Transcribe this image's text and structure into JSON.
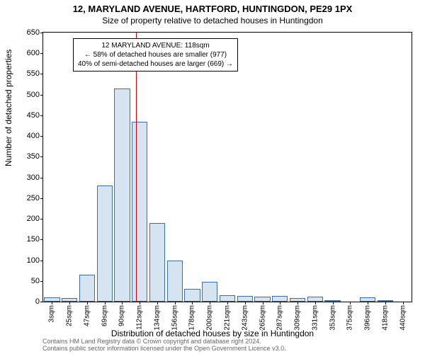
{
  "title_main": "12, MARYLAND AVENUE, HARTFORD, HUNTINGDON, PE29 1PX",
  "title_sub": "Size of property relative to detached houses in Huntingdon",
  "y_axis_label": "Number of detached properties",
  "x_axis_label": "Distribution of detached houses by size in Huntingdon",
  "footer_line1": "Contains HM Land Registry data © Crown copyright and database right 2024.",
  "footer_line2": "Contains public sector information licensed under the Open Government Licence v3.0.",
  "chart": {
    "type": "bar",
    "ylim": [
      0,
      650
    ],
    "yticks": [
      0,
      50,
      100,
      150,
      200,
      250,
      300,
      350,
      400,
      450,
      500,
      550,
      600,
      650
    ],
    "xticks": [
      "3sqm",
      "25sqm",
      "47sqm",
      "69sqm",
      "90sqm",
      "112sqm",
      "134sqm",
      "156sqm",
      "178sqm",
      "200sqm",
      "221sqm",
      "243sqm",
      "265sqm",
      "287sqm",
      "309sqm",
      "331sqm",
      "353sqm",
      "375sqm",
      "396sqm",
      "418sqm",
      "440sqm"
    ],
    "bar_values": [
      10,
      8,
      65,
      280,
      515,
      435,
      190,
      100,
      30,
      48,
      16,
      14,
      12,
      14,
      8,
      12,
      4,
      0,
      10,
      4,
      0
    ],
    "bar_fill": "#d6e4f2",
    "bar_stroke": "#3a6ea5",
    "bar_width_ratio": 0.9,
    "vline_position_index": 5.3,
    "vline_color": "#cc0000",
    "annotation": {
      "line1": "12 MARYLAND AVENUE: 118sqm",
      "line2": "← 58% of detached houses are smaller (977)",
      "line3": "40% of semi-detached houses are larger (669) →"
    },
    "plot_background": "#ffffff",
    "border_color": "#000000"
  }
}
